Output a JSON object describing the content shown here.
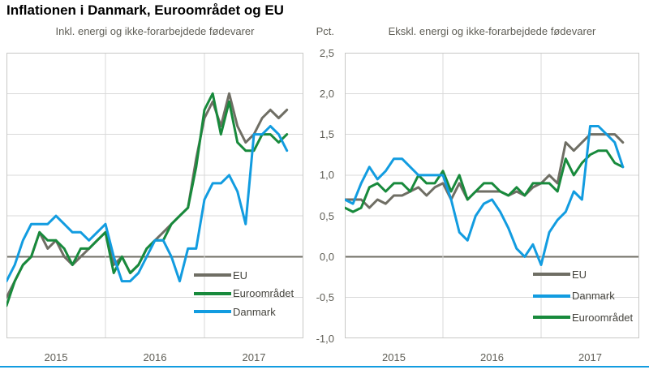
{
  "page": {
    "title": "Inflationen i Danmark, Euroområdet og EU",
    "unit_label": "Pct."
  },
  "colors": {
    "eu": "#6f6e64",
    "euro_area": "#188a3c",
    "denmark": "#129ce0",
    "grid": "#d9d9d9",
    "zero_line": "#6f6e64",
    "plot_border": "#c8c8c6",
    "bottom_bar": "#129ce0",
    "text_muted": "#5e5d55"
  },
  "chart_data": [
    {
      "type": "line",
      "title": "Inkl. energi og ikke-forarbejdede fødevarer",
      "x_range": "jan 2015 - nov 2017, månedlige observationer",
      "x_tick_labels": [
        "2015",
        "2016",
        "2017"
      ],
      "ylim": [
        -1.0,
        2.5
      ],
      "y_step": 0.5,
      "y_tick_labels": [
        "2,5",
        "2,0",
        "1,5",
        "1,0",
        "0,5",
        "0,0",
        "-0,5",
        "-1,0"
      ],
      "grid": true,
      "zero_line": true,
      "legend_position": "inside-bottom-right",
      "legend": [
        {
          "label": "EU",
          "color_key": "eu"
        },
        {
          "label": "Euroområdet",
          "color_key": "euro_area"
        },
        {
          "label": "Danmark",
          "color_key": "denmark"
        }
      ],
      "series": [
        {
          "name": "EU",
          "color_key": "eu",
          "values": [
            -0.5,
            -0.3,
            -0.1,
            0.0,
            0.3,
            0.1,
            0.2,
            0.0,
            -0.1,
            0.0,
            0.1,
            0.2,
            0.3,
            -0.1,
            0.0,
            -0.2,
            -0.1,
            0.1,
            0.2,
            0.3,
            0.4,
            0.5,
            0.6,
            1.2,
            1.7,
            1.9,
            1.6,
            2.0,
            1.6,
            1.4,
            1.5,
            1.7,
            1.8,
            1.7,
            1.8
          ]
        },
        {
          "name": "Euroområdet",
          "color_key": "euro_area",
          "values": [
            -0.6,
            -0.3,
            -0.1,
            0.0,
            0.3,
            0.2,
            0.2,
            0.1,
            -0.1,
            0.1,
            0.1,
            0.2,
            0.3,
            -0.2,
            0.0,
            -0.2,
            -0.1,
            0.1,
            0.2,
            0.2,
            0.4,
            0.5,
            0.6,
            1.1,
            1.8,
            2.0,
            1.5,
            1.9,
            1.4,
            1.3,
            1.3,
            1.5,
            1.5,
            1.4,
            1.5
          ]
        },
        {
          "name": "Danmark",
          "color_key": "denmark",
          "values": [
            -0.3,
            -0.1,
            0.2,
            0.4,
            0.4,
            0.4,
            0.5,
            0.4,
            0.3,
            0.3,
            0.2,
            0.3,
            0.4,
            0.0,
            -0.3,
            -0.3,
            -0.2,
            0.0,
            0.2,
            0.2,
            0.0,
            -0.3,
            0.1,
            0.1,
            0.7,
            0.9,
            0.9,
            1.0,
            0.8,
            0.4,
            1.5,
            1.5,
            1.6,
            1.5,
            1.3
          ]
        }
      ]
    },
    {
      "type": "line",
      "title": "Ekskl. energi og ikke-forarbejdede fødevarer",
      "x_range": "jan 2015 - nov 2017, månedlige observationer",
      "x_tick_labels": [
        "2015",
        "2016",
        "2017"
      ],
      "ylim": [
        -1.0,
        2.5
      ],
      "y_step": 0.5,
      "y_tick_labels": [
        "2,5",
        "2,0",
        "1,5",
        "1,0",
        "0,5",
        "0,0",
        "-0,5",
        "-1,0"
      ],
      "grid": true,
      "zero_line": true,
      "legend_position": "inside-bottom-right",
      "legend": [
        {
          "label": "EU",
          "color_key": "eu"
        },
        {
          "label": "Danmark",
          "color_key": "denmark"
        },
        {
          "label": "Euroområdet",
          "color_key": "euro_area"
        }
      ],
      "series": [
        {
          "name": "EU",
          "color_key": "eu",
          "values": [
            0.7,
            0.7,
            0.7,
            0.6,
            0.7,
            0.65,
            0.75,
            0.75,
            0.8,
            0.85,
            0.75,
            0.85,
            0.9,
            0.7,
            0.9,
            0.7,
            0.8,
            0.8,
            0.8,
            0.8,
            0.75,
            0.8,
            0.75,
            0.85,
            0.9,
            1.0,
            0.9,
            1.4,
            1.3,
            1.4,
            1.5,
            1.5,
            1.5,
            1.5,
            1.4
          ]
        },
        {
          "name": "Euroområdet",
          "color_key": "euro_area",
          "values": [
            0.6,
            0.55,
            0.6,
            0.85,
            0.9,
            0.8,
            0.9,
            0.9,
            0.8,
            1.0,
            0.9,
            0.9,
            1.05,
            0.8,
            1.0,
            0.7,
            0.8,
            0.9,
            0.9,
            0.8,
            0.75,
            0.85,
            0.75,
            0.9,
            0.9,
            0.9,
            0.8,
            1.2,
            1.0,
            1.15,
            1.25,
            1.3,
            1.3,
            1.15,
            1.1
          ]
        },
        {
          "name": "Danmark",
          "color_key": "denmark",
          "values": [
            0.7,
            0.65,
            0.9,
            1.1,
            0.95,
            1.05,
            1.2,
            1.2,
            1.1,
            1.0,
            1.0,
            1.0,
            1.0,
            0.7,
            0.3,
            0.2,
            0.5,
            0.65,
            0.7,
            0.55,
            0.35,
            0.1,
            0.0,
            0.15,
            -0.1,
            0.3,
            0.45,
            0.55,
            0.8,
            0.7,
            1.6,
            1.6,
            1.5,
            1.4,
            1.1
          ]
        }
      ]
    }
  ]
}
